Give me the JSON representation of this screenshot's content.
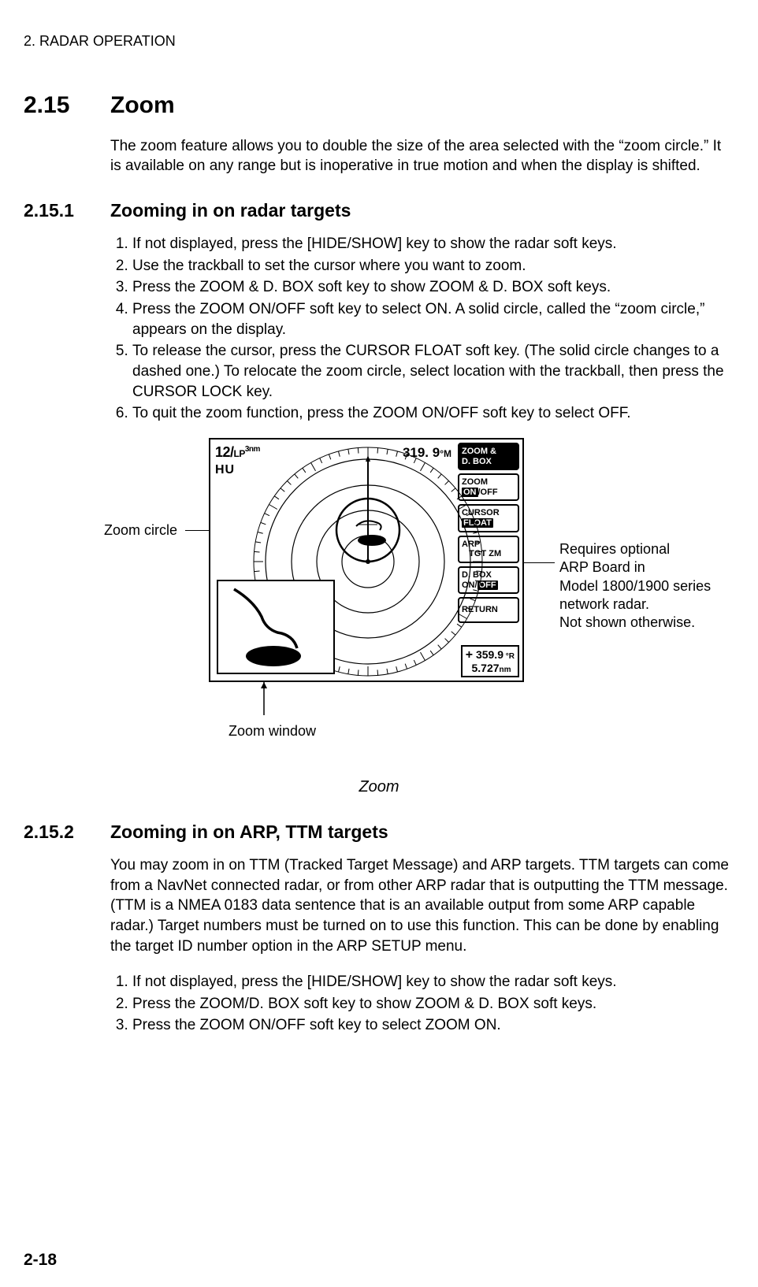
{
  "chapter_header": "2. RADAR OPERATION",
  "section": {
    "num": "2.15",
    "title": "Zoom"
  },
  "intro": "The zoom feature allows you to double the size of the area selected with the “zoom circle.” It is available on any range but is inoperative in true motion and when the display is shifted.",
  "sub1": {
    "num": "2.15.1",
    "title": "Zooming in on radar targets"
  },
  "list1": [
    "If not displayed, press the [HIDE/SHOW] key to show the radar soft keys.",
    "Use the trackball to set the cursor where you want to zoom.",
    "Press the ZOOM & D. BOX soft key to show ZOOM & D. BOX soft keys.",
    "Press the ZOOM ON/OFF soft key to select ON. A solid circle, called the “zoom circle,” appears on the display.",
    "To release the cursor, press the CURSOR FLOAT soft key. (The solid circle changes to a dashed one.) To relocate the zoom circle, select location with the trackball, then press the CURSOR LOCK key.",
    "To quit the zoom function, press the ZOOM ON/OFF soft key to select OFF."
  ],
  "figure": {
    "range_main": "12/",
    "range_lp": "LP",
    "range_nm": "3nm",
    "range_mode": "HU",
    "heading": "319. 9",
    "heading_unit": "°M",
    "softkeys": {
      "title_l1": "ZOOM &",
      "title_l2": "D. BOX",
      "zoom_l1": "ZOOM",
      "zoom_on": "ON",
      "zoom_off": "/OFF",
      "cursor_l1": "CURSOR",
      "cursor_float": "FLOAT",
      "arp_l1": "ARP",
      "arp_l2": "   TGT ZM",
      "dbox_l1": "D. BOX",
      "dbox_on": "ON/",
      "dbox_off": "OFF",
      "return": "RETURN"
    },
    "cursor_readout": {
      "plus": "+",
      "brg": "359.9",
      "brg_unit": " °R",
      "rng": "5.727",
      "rng_unit": "nm"
    },
    "callout_zoom_circle": "Zoom circle",
    "callout_zoom_window": "Zoom window",
    "callout_arp": "Requires optional\nARP Board in\nModel 1800/1900 series\nnetwork radar.\nNot shown otherwise.",
    "caption": "Zoom",
    "colors": {
      "stroke": "#000000",
      "bg": "#ffffff"
    }
  },
  "sub2": {
    "num": "2.15.2",
    "title": "Zooming in on ARP, TTM targets"
  },
  "body2": "You may zoom in on TTM (Tracked Target Message) and ARP targets. TTM targets can come from a NavNet connected radar, or from other ARP radar that is outputting the TTM message. (TTM is a NMEA 0183 data sentence that is an available output from some ARP capable radar.) Target numbers must be turned on to use this function. This can be done by enabling the target ID number option in the ARP SETUP menu.",
  "list2": [
    "If not displayed, press the [HIDE/SHOW] key to show the radar soft keys.",
    "Press the ZOOM/D. BOX soft key to show ZOOM & D. BOX soft keys.",
    "Press the ZOOM ON/OFF soft key to select ZOOM ON."
  ],
  "page_num": "2-18"
}
